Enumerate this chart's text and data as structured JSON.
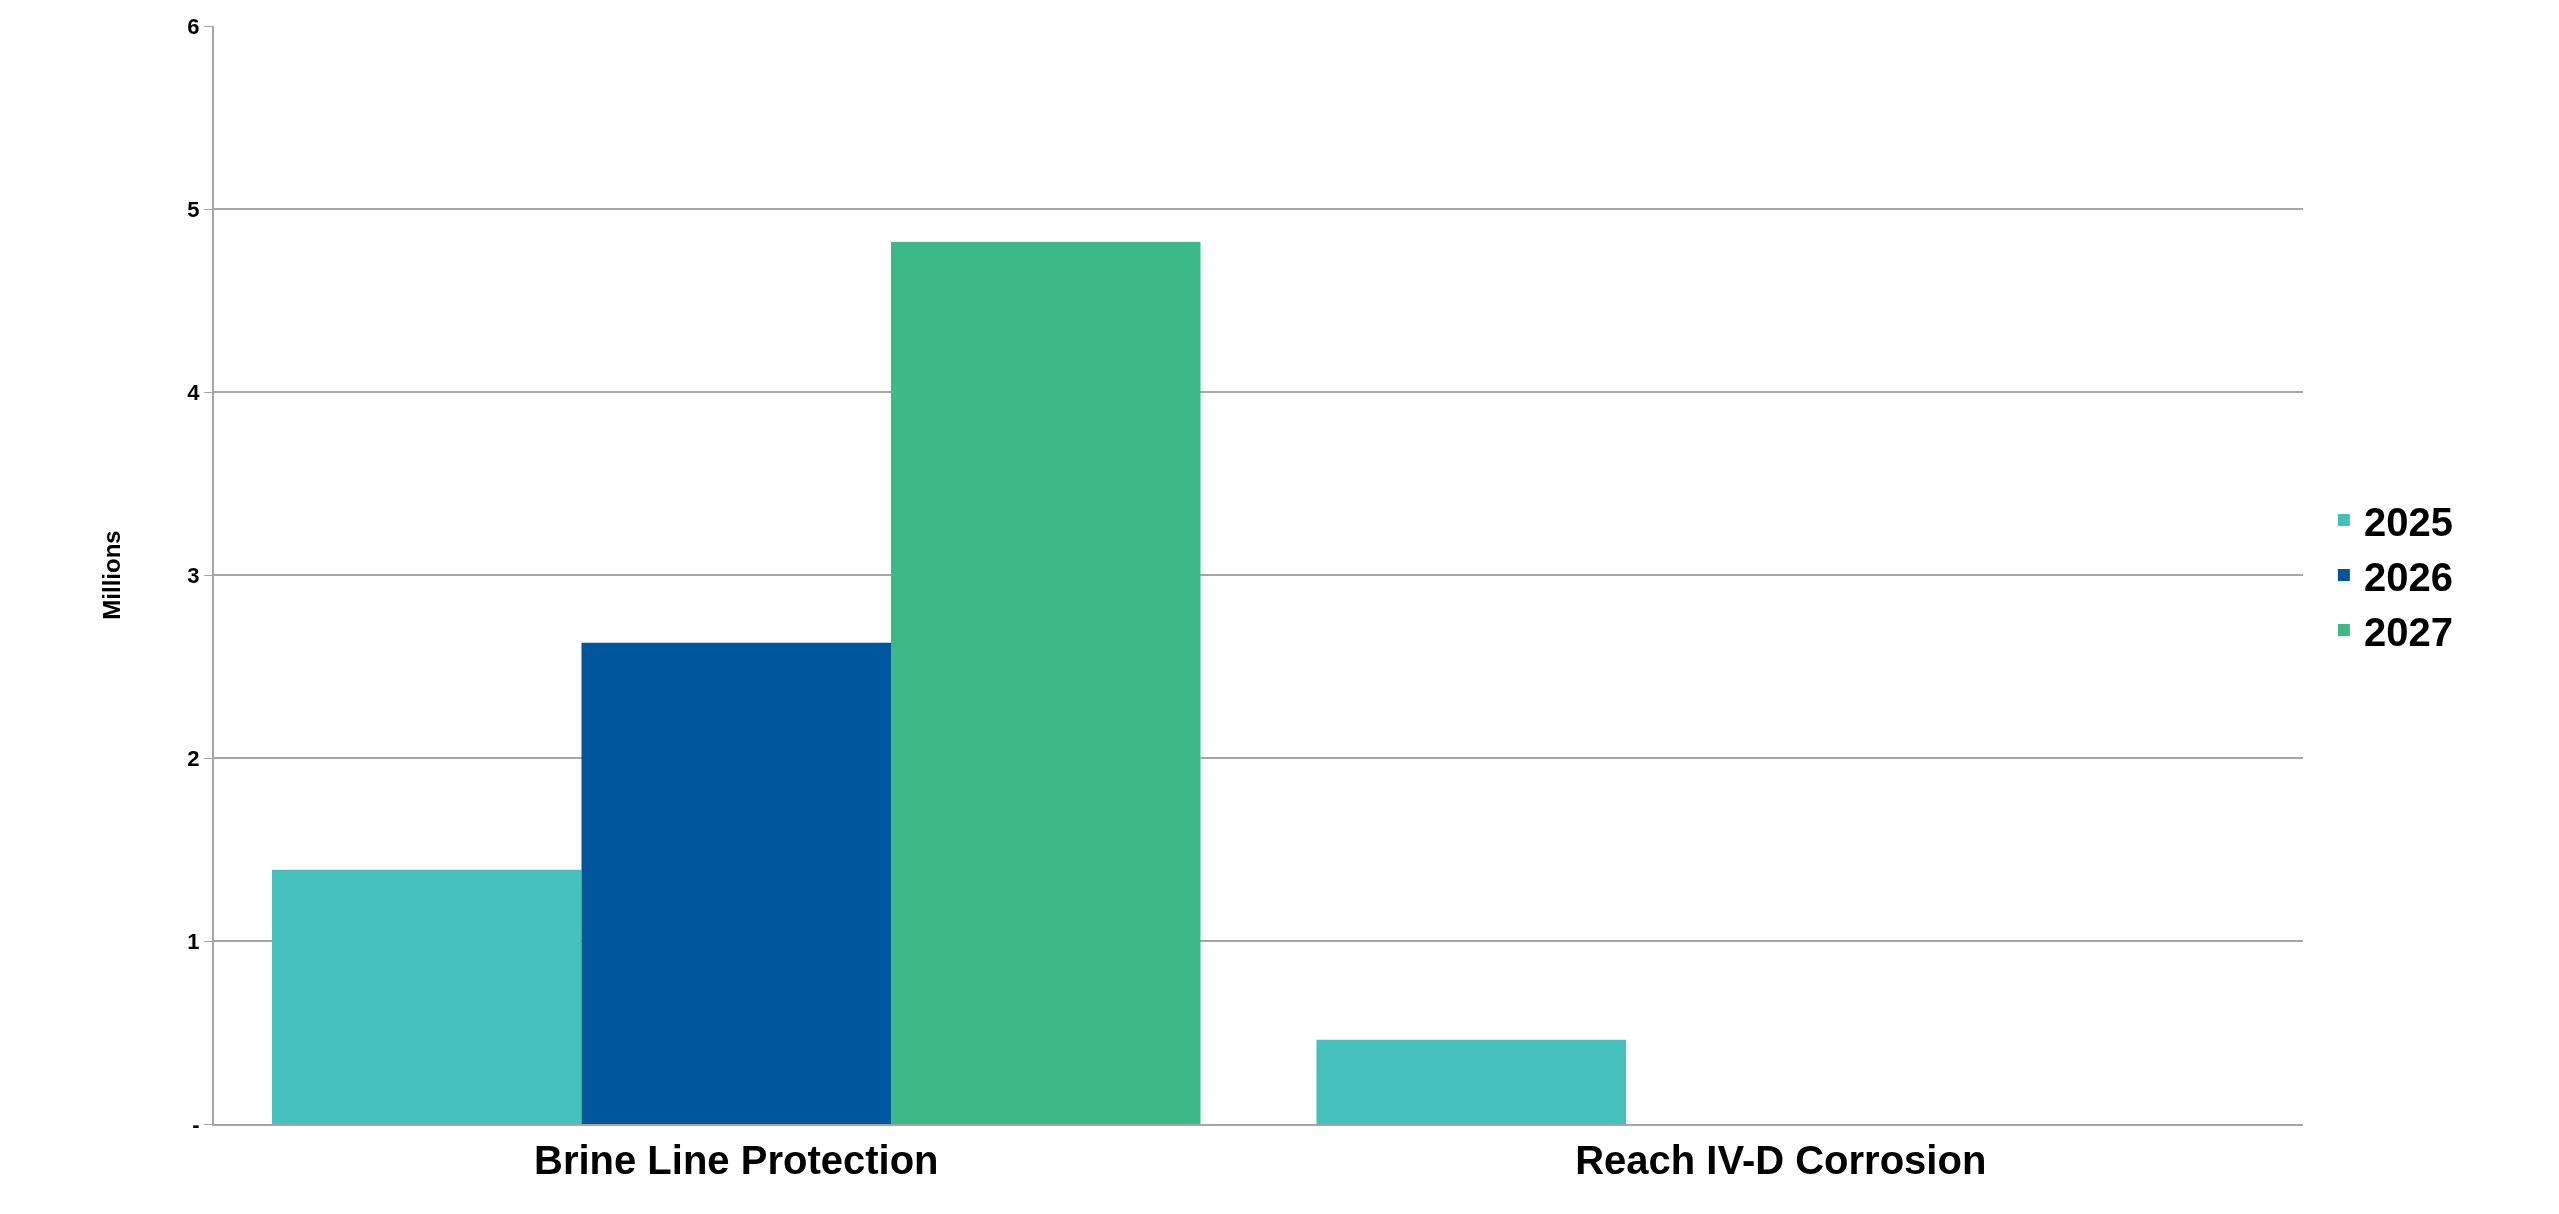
{
  "chart_data": {
    "type": "bar",
    "ylabel": "Millions",
    "categories": [
      "Brine Line Protection",
      "Reach IV-D Corrosion"
    ],
    "series": [
      {
        "name": "2025",
        "color": "#45c1bd",
        "values": [
          1.39,
          0.46
        ]
      },
      {
        "name": "2026",
        "color": "#00569c",
        "values": [
          2.63,
          null
        ]
      },
      {
        "name": "2027",
        "color": "#3bb987",
        "values": [
          4.82,
          null
        ]
      }
    ],
    "ylim": [
      0,
      6
    ],
    "yticks": [
      {
        "value": 0,
        "label": "-"
      },
      1,
      2,
      3,
      4,
      5,
      6
    ],
    "grid": "y",
    "legend": "right"
  }
}
